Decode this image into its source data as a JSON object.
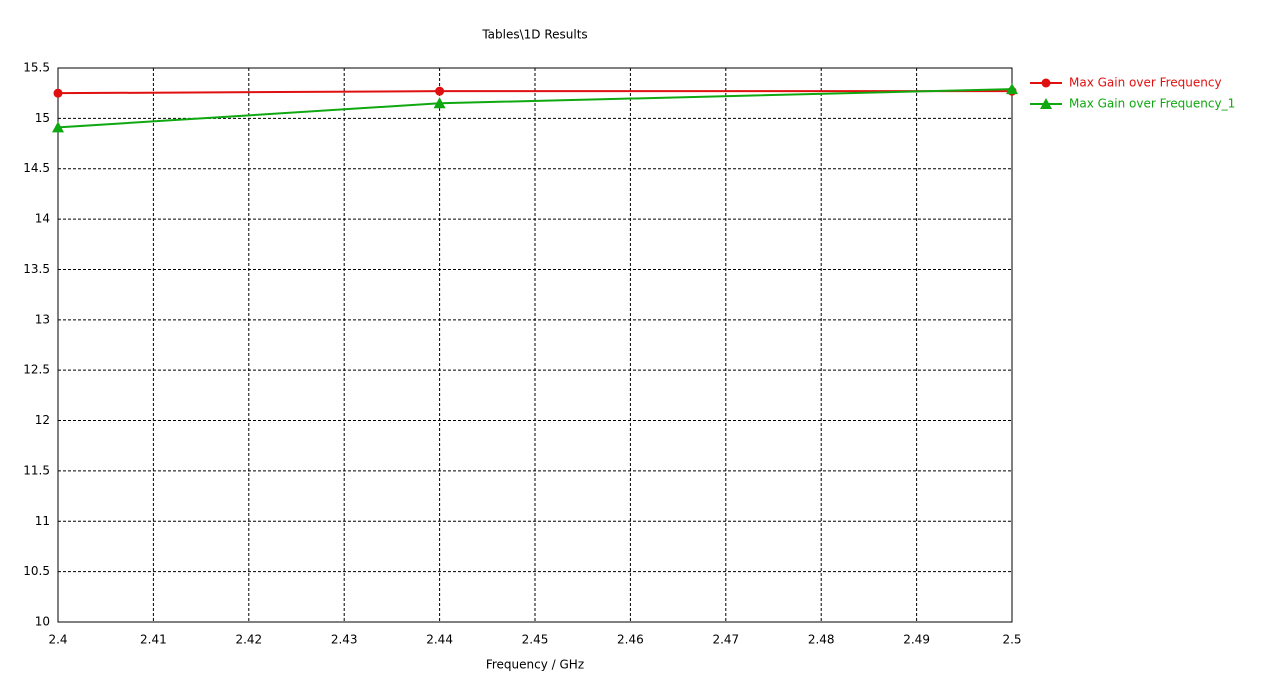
{
  "chart_data": {
    "type": "line",
    "title": "Tables\\1D Results",
    "x_label": "Frequency / GHz",
    "x": [
      2.4,
      2.44,
      2.5
    ],
    "series": [
      {
        "name": "Max Gain over Frequency",
        "color": "#e01010",
        "marker": "circle",
        "values": [
          15.25,
          15.27,
          15.27
        ]
      },
      {
        "name": "Max Gain over Frequency_1",
        "color": "#10a810",
        "marker": "triangle",
        "values": [
          14.91,
          15.15,
          15.29
        ]
      }
    ],
    "xlim": [
      2.4,
      2.5
    ],
    "xticks": [
      2.4,
      2.41,
      2.42,
      2.43,
      2.44,
      2.45,
      2.46,
      2.47,
      2.48,
      2.49,
      2.5
    ],
    "ylim": [
      10,
      15.5
    ],
    "yticks": [
      10,
      10.5,
      11,
      11.5,
      12,
      12.5,
      13,
      13.5,
      14,
      14.5,
      15,
      15.5
    ],
    "grid": true,
    "legend": "right"
  }
}
